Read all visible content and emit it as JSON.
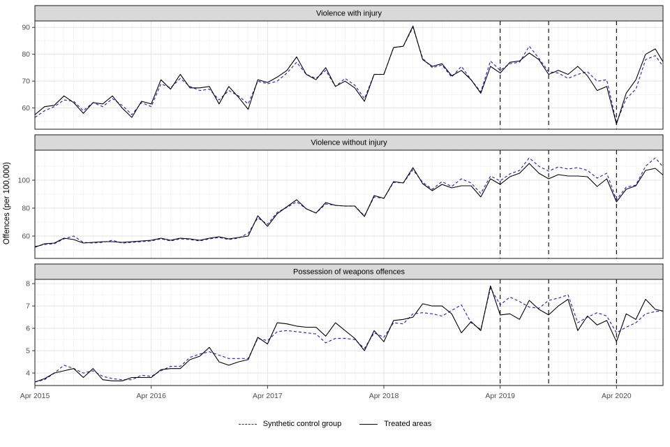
{
  "figure": {
    "y_axis_label": "Offences (per 100,000)"
  },
  "legend": {
    "items": [
      {
        "label": "Synthetic control group",
        "style": "dashed",
        "color": "#2525cd"
      },
      {
        "label": "Treated areas",
        "style": "solid",
        "color": "#000000"
      }
    ]
  },
  "chart_data": {
    "type": "line",
    "title": "",
    "xlabel": "",
    "ylabel": "Offences (per 100,000)",
    "x_unit": "months since Apr 2015, monthly data Apr 2015 - Sep 2020",
    "n_months": 66,
    "x_breaks": [
      {
        "month": 0,
        "label": "Apr 2015"
      },
      {
        "month": 12,
        "label": "Apr 2016"
      },
      {
        "month": 24,
        "label": "Apr 2017"
      },
      {
        "month": 36,
        "label": "Apr 2018"
      },
      {
        "month": 48,
        "label": "Apr 2019"
      },
      {
        "month": 60,
        "label": "Apr 2020"
      }
    ],
    "vline_months": [
      48,
      53,
      60
    ],
    "grid": true,
    "legend_position": "bottom",
    "colors": {
      "synthetic": "#2525cd",
      "treated": "#000000"
    },
    "panels": [
      {
        "title": "Violence with injury",
        "ylim": [
          52.1,
          92.4
        ],
        "yticks": [
          60,
          70,
          80,
          90
        ],
        "yminor": [
          55,
          65,
          75,
          85
        ],
        "series": [
          {
            "name": "Synthetic control group",
            "values": [
              56.5,
              59,
              60.5,
              63,
              62.5,
              59,
              62,
              60.5,
              63.5,
              61,
              57.5,
              62,
              60.5,
              69,
              67.5,
              71,
              68,
              66.5,
              67,
              63,
              66.5,
              64.5,
              61.5,
              70,
              69,
              70,
              73,
              77,
              72.5,
              71,
              74,
              68,
              71,
              68.5,
              63.5,
              72.5,
              72.5,
              82.5,
              83,
              90,
              78.5,
              75,
              76,
              71.5,
              75.5,
              70.5,
              66,
              77.5,
              74,
              76.5,
              77,
              83,
              78.5,
              73.5,
              73,
              71,
              72.5,
              73.5,
              70,
              70.5,
              54.5,
              63.5,
              67,
              78,
              79.5,
              74.5
            ]
          },
          {
            "name": "Treated areas",
            "values": [
              57.5,
              60.5,
              61,
              64.5,
              62,
              58,
              62,
              61.5,
              64.5,
              60,
              56.5,
              62.5,
              61.5,
              70.5,
              67,
              72.5,
              67.5,
              67.5,
              68,
              61.5,
              68,
              64,
              59.5,
              70.5,
              69.5,
              71.5,
              74,
              79,
              72.5,
              70.5,
              75,
              68,
              70,
              67.5,
              62.5,
              72.5,
              72.5,
              82.5,
              83,
              90.5,
              78,
              75.5,
              76.5,
              72,
              74,
              70.5,
              65.5,
              75.5,
              73,
              77,
              77.5,
              80.5,
              78,
              72.5,
              74,
              72.5,
              75.5,
              72,
              66.5,
              68,
              54,
              65.5,
              70.5,
              80,
              82,
              76
            ]
          }
        ]
      },
      {
        "title": "Violence without injury",
        "ylim": [
          44,
          121.5
        ],
        "yticks": [
          60,
          80,
          100
        ],
        "yminor": [
          50,
          70,
          90,
          110
        ],
        "series": [
          {
            "name": "Synthetic control group",
            "values": [
              52.5,
              54,
              54.5,
              58,
              60,
              55.5,
              55,
              55.5,
              57,
              55,
              55.5,
              56,
              56.5,
              58,
              56.5,
              58,
              57.5,
              56.5,
              58,
              59,
              57.5,
              58.5,
              62,
              73,
              68.5,
              77,
              80.5,
              84.5,
              79.5,
              76.5,
              83,
              82,
              81.5,
              81.5,
              74.5,
              88,
              87,
              98.5,
              98,
              107.5,
              98.5,
              93.5,
              99,
              95.5,
              101,
              98,
              90.5,
              103,
              99.5,
              104.5,
              107,
              116,
              110,
              106.5,
              109.5,
              108,
              109,
              107,
              101.5,
              105,
              86,
              95,
              96.5,
              110,
              116,
              108
            ]
          },
          {
            "name": "Treated areas",
            "values": [
              52,
              54.5,
              55,
              58.5,
              57.5,
              55,
              55.5,
              56,
              56,
              55.5,
              56,
              56.5,
              57,
              58.5,
              57,
              58.5,
              58,
              57,
              58.5,
              59.5,
              58,
              59,
              60,
              74.5,
              67,
              76,
              81,
              86,
              79.5,
              76.5,
              84,
              82,
              81.5,
              81.5,
              74,
              89,
              87,
              99,
              98,
              109,
              97.5,
              92.5,
              97,
              94.5,
              96,
              96,
              88,
              101,
              97,
              102.5,
              105,
              112,
              105,
              101,
              104,
              103,
              103,
              102.5,
              95.5,
              101,
              84.5,
              93.5,
              96,
              107,
              108.5,
              102.5
            ]
          }
        ]
      },
      {
        "title": "Possession of weapons offences",
        "ylim": [
          3.44,
          8.19
        ],
        "yticks": [
          4,
          5,
          6,
          7,
          8
        ],
        "yminor": [
          3.5,
          4.5,
          5.5,
          6.5,
          7.5
        ],
        "series": [
          {
            "name": "Synthetic control group",
            "values": [
              3.6,
              3.7,
              4.0,
              4.35,
              4.2,
              4.0,
              4.1,
              3.85,
              3.75,
              3.7,
              3.7,
              3.9,
              3.85,
              4.1,
              4.3,
              4.3,
              4.7,
              4.85,
              4.95,
              4.8,
              4.65,
              4.65,
              4.65,
              5.55,
              5.45,
              5.85,
              5.9,
              5.85,
              5.8,
              5.75,
              5.35,
              5.55,
              5.55,
              5.5,
              5.1,
              5.8,
              5.6,
              6.25,
              6.2,
              6.65,
              6.7,
              6.65,
              6.55,
              6.8,
              7.05,
              6.25,
              5.95,
              7.8,
              7.05,
              7.4,
              7.2,
              6.95,
              6.9,
              7.25,
              7.35,
              7.5,
              6.25,
              6.5,
              6.7,
              6.55,
              5.8,
              6.05,
              6.25,
              6.65,
              6.75,
              6.8
            ]
          },
          {
            "name": "Treated areas",
            "values": [
              3.6,
              3.75,
              4.0,
              4.1,
              4.2,
              3.8,
              4.2,
              3.7,
              3.65,
              3.65,
              3.8,
              3.8,
              3.8,
              4.15,
              4.2,
              4.2,
              4.6,
              4.75,
              5.15,
              4.5,
              4.35,
              4.5,
              4.6,
              5.6,
              5.3,
              6.25,
              6.2,
              6.1,
              6.05,
              6.05,
              5.65,
              6.25,
              5.9,
              5.55,
              5.0,
              5.9,
              5.4,
              6.35,
              6.4,
              6.5,
              7.1,
              7.0,
              7.0,
              6.65,
              5.8,
              6.3,
              5.9,
              7.9,
              6.6,
              6.65,
              6.4,
              7.25,
              6.85,
              6.6,
              7.0,
              7.3,
              5.9,
              6.55,
              6.15,
              6.35,
              5.4,
              6.65,
              6.4,
              7.3,
              6.85,
              6.75
            ]
          }
        ]
      }
    ]
  }
}
